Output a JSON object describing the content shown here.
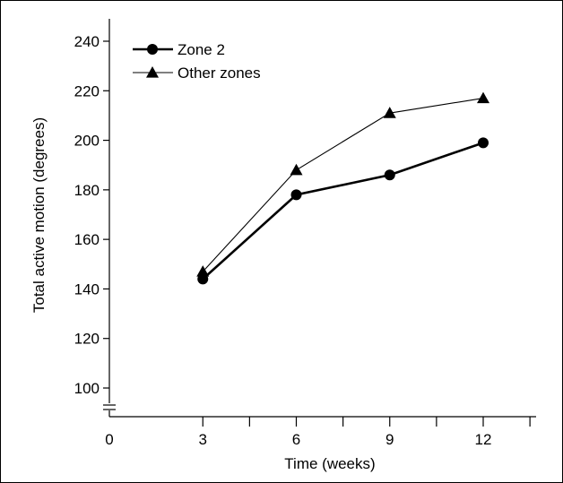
{
  "chart_data": {
    "type": "line",
    "xlabel": "Time (weeks)",
    "ylabel": "Total active motion (degrees)",
    "x_ticks": [
      0,
      3,
      6,
      9,
      12
    ],
    "x_ticks_unlabeled": [
      4.5,
      7.5,
      10.5,
      13.5
    ],
    "xlim": [
      0,
      14
    ],
    "y_ticks": [
      100,
      120,
      140,
      160,
      180,
      200,
      220,
      240
    ],
    "ylim": [
      95,
      245
    ],
    "y_axis_break": true,
    "legend_position": "top-left",
    "grid": false,
    "series": [
      {
        "name": "Zone 2",
        "marker": "circle",
        "line_weight": "bold",
        "x": [
          3,
          6,
          9,
          12
        ],
        "y": [
          144,
          178,
          186,
          199
        ]
      },
      {
        "name": "Other zones",
        "marker": "triangle",
        "line_weight": "thin",
        "x": [
          3,
          6,
          9,
          12
        ],
        "y": [
          147,
          188,
          211,
          217
        ]
      }
    ]
  }
}
